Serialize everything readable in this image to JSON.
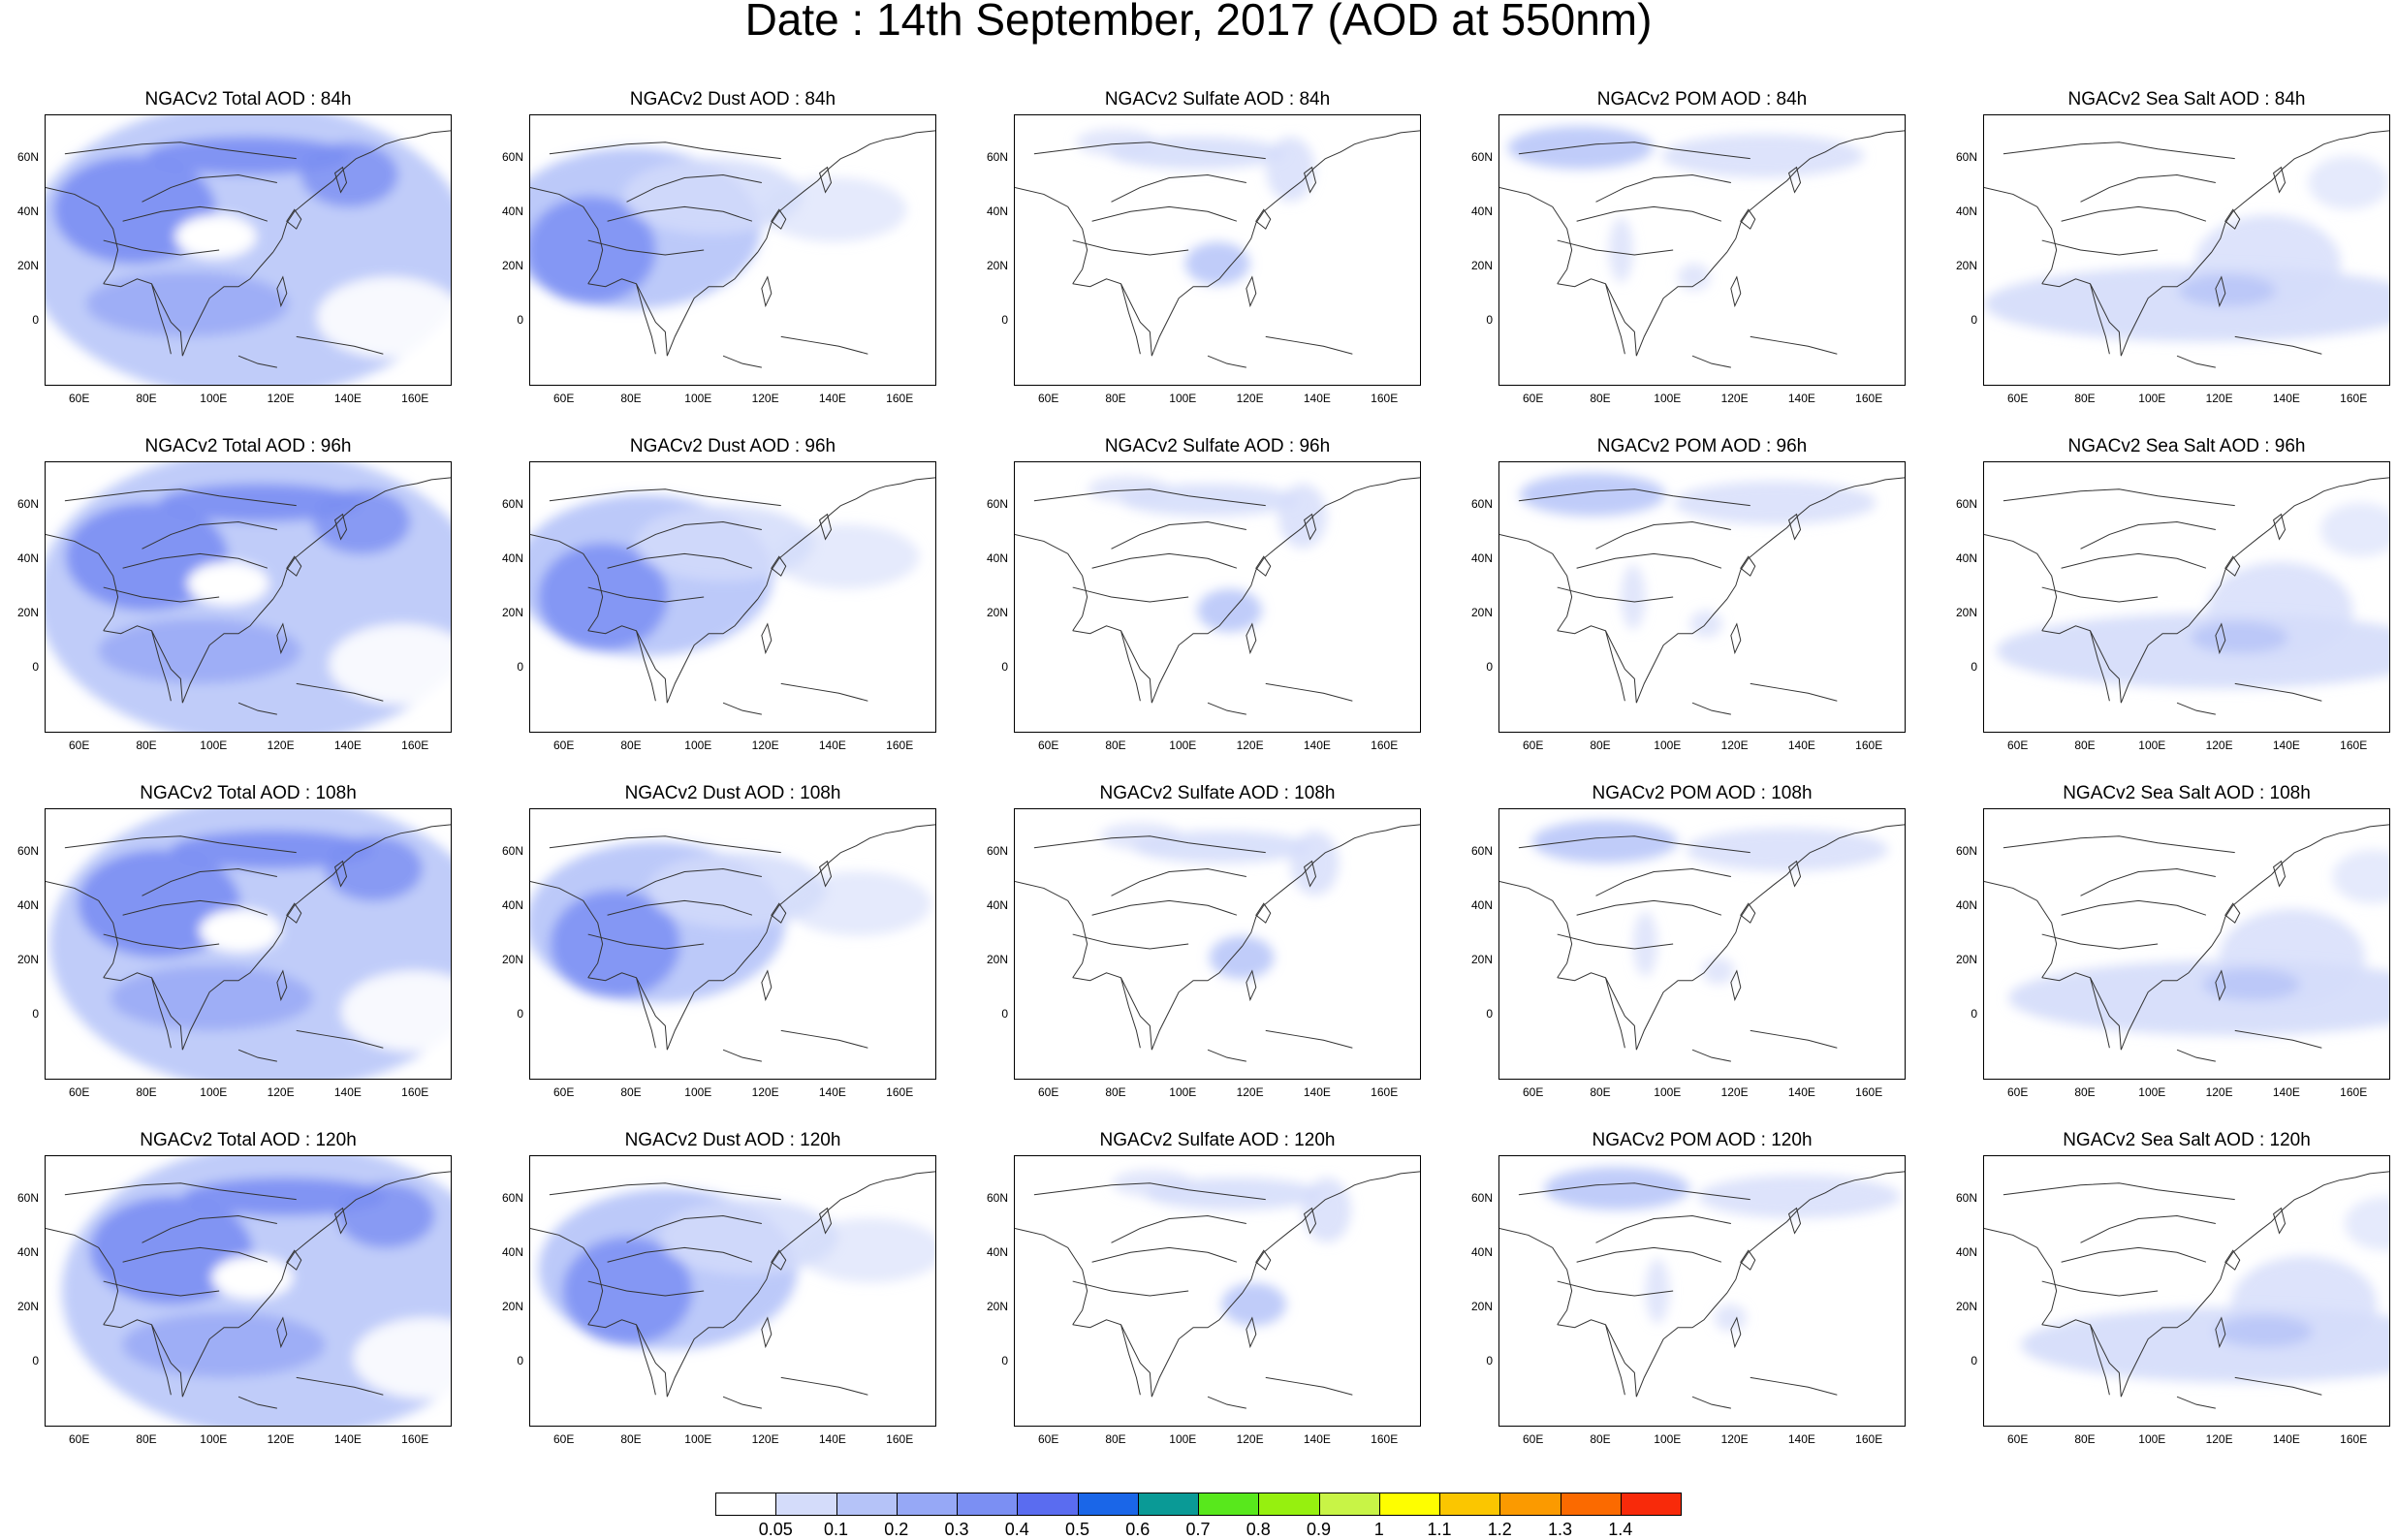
{
  "title": "Date : 14th September, 2017 (AOD at 550nm)",
  "panels": [
    {
      "title": "NGACv2 Total AOD : 84h",
      "species": "total",
      "hour": 84
    },
    {
      "title": "NGACv2 Dust AOD : 84h",
      "species": "dust",
      "hour": 84
    },
    {
      "title": "NGACv2 Sulfate AOD : 84h",
      "species": "sulfate",
      "hour": 84
    },
    {
      "title": "NGACv2 POM AOD : 84h",
      "species": "pom",
      "hour": 84
    },
    {
      "title": "NGACv2 Sea Salt AOD : 84h",
      "species": "seasalt",
      "hour": 84
    },
    {
      "title": "NGACv2 Total AOD : 96h",
      "species": "total",
      "hour": 96
    },
    {
      "title": "NGACv2 Dust AOD : 96h",
      "species": "dust",
      "hour": 96
    },
    {
      "title": "NGACv2 Sulfate AOD : 96h",
      "species": "sulfate",
      "hour": 96
    },
    {
      "title": "NGACv2 POM AOD : 96h",
      "species": "pom",
      "hour": 96
    },
    {
      "title": "NGACv2 Sea Salt AOD : 96h",
      "species": "seasalt",
      "hour": 96
    },
    {
      "title": "NGACv2 Total AOD : 108h",
      "species": "total",
      "hour": 108
    },
    {
      "title": "NGACv2 Dust AOD : 108h",
      "species": "dust",
      "hour": 108
    },
    {
      "title": "NGACv2 Sulfate AOD : 108h",
      "species": "sulfate",
      "hour": 108
    },
    {
      "title": "NGACv2 POM AOD : 108h",
      "species": "pom",
      "hour": 108
    },
    {
      "title": "NGACv2 Sea Salt AOD : 108h",
      "species": "seasalt",
      "hour": 108
    },
    {
      "title": "NGACv2 Total AOD : 120h",
      "species": "total",
      "hour": 120
    },
    {
      "title": "NGACv2 Dust AOD : 120h",
      "species": "dust",
      "hour": 120
    },
    {
      "title": "NGACv2 Sulfate AOD : 120h",
      "species": "sulfate",
      "hour": 120
    },
    {
      "title": "NGACv2 POM AOD : 120h",
      "species": "pom",
      "hour": 120
    },
    {
      "title": "NGACv2 Sea Salt  AOD : 120h",
      "species": "seasalt",
      "hour": 120
    }
  ],
  "lat_ticks": [
    "60N",
    "40N",
    "20N",
    "0"
  ],
  "lon_ticks": [
    "60E",
    "80E",
    "100E",
    "120E",
    "140E",
    "160E"
  ],
  "colorbar": {
    "colors": [
      "#ffffff",
      "#d4dcfa",
      "#b5c3f8",
      "#96a8f6",
      "#7b8ff3",
      "#5a6cf0",
      "#1a66e8",
      "#0a9a96",
      "#58e81c",
      "#96f00f",
      "#c8f446",
      "#fefe00",
      "#fbc600",
      "#fb9a00",
      "#fb6a00",
      "#f82a0a"
    ],
    "labels": [
      "0.05",
      "0.1",
      "0.2",
      "0.3",
      "0.4",
      "0.5",
      "0.6",
      "0.7",
      "0.8",
      "0.9",
      "1",
      "1.1",
      "1.2",
      "1.3",
      "1.4"
    ]
  }
}
